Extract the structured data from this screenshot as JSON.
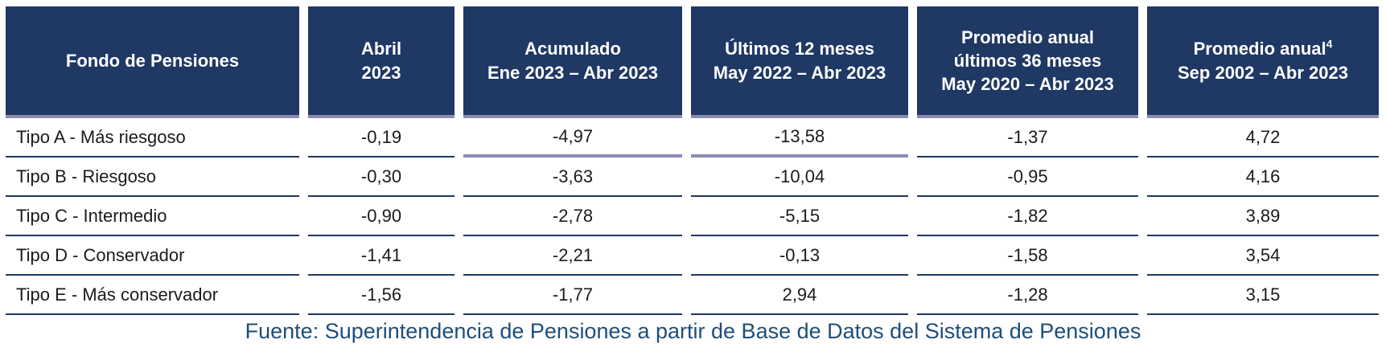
{
  "colors": {
    "header_background": "#1F3864",
    "header_underline": "#8A8AB5",
    "row_separator": "#1F3864",
    "body_text": "#1b1b1b",
    "footer_text": "#1F4E79"
  },
  "table": {
    "headers": [
      {
        "line1": "Fondo de Pensiones"
      },
      {
        "line1": "Abril",
        "line2": "2023"
      },
      {
        "line1": "Acumulado",
        "line2": "Ene 2023 – Abr 2023"
      },
      {
        "line1": "Últimos 12 meses",
        "line2": "May 2022 – Abr 2023"
      },
      {
        "line1": "Promedio anual",
        "line2": "últimos 36 meses",
        "line3": "May 2020 – Abr 2023"
      },
      {
        "line1": "Promedio anual",
        "sup": "4",
        "line2": "Sep 2002 – Abr 2023"
      }
    ],
    "rows": [
      {
        "label": "Tipo A - Más riesgoso",
        "values": [
          "-0,19",
          "-4,97",
          "-13,58",
          "-1,37",
          "4,72"
        ]
      },
      {
        "label": "Tipo B - Riesgoso",
        "values": [
          "-0,30",
          "-3,63",
          "-10,04",
          "-0,95",
          "4,16"
        ]
      },
      {
        "label": "Tipo C - Intermedio",
        "values": [
          "-0,90",
          "-2,78",
          "-5,15",
          "-1,82",
          "3,89"
        ]
      },
      {
        "label": "Tipo D - Conservador",
        "values": [
          "-1,41",
          "-2,21",
          "-0,13",
          "-1,58",
          "3,54"
        ]
      },
      {
        "label": "Tipo E - Más conservador",
        "values": [
          "-1,56",
          "-1,77",
          "2,94",
          "-1,28",
          "3,15"
        ]
      }
    ]
  },
  "footer": {
    "source_note": "Fuente: Superintendencia de Pensiones a partir de Base de Datos del Sistema de Pensiones"
  }
}
